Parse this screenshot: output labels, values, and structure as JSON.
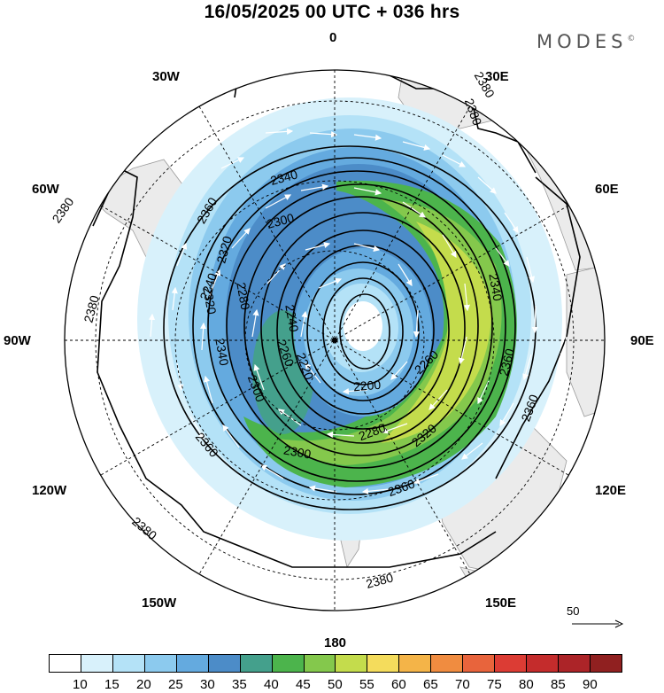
{
  "title": "16/05/2025  00 UTC  + 036 hrs",
  "brand": "MODES",
  "brand_mark": "©",
  "longitude_labels": {
    "top": "0",
    "e30": "30E",
    "e60": "60E",
    "e90": "90E",
    "e120": "120E",
    "e150": "150E",
    "bottom": "180",
    "w150": "150W",
    "w120": "120W",
    "w90": "90W",
    "w60": "60W",
    "w30": "30W"
  },
  "contour_labels": [
    "2380",
    "2380",
    "2380",
    "2380",
    "2380",
    "2380",
    "2360",
    "2360",
    "2360",
    "2360",
    "2360",
    "2340",
    "2340",
    "2340",
    "2320",
    "2320",
    "2320",
    "2300",
    "2300",
    "2300",
    "2280",
    "2280",
    "2260",
    "2260",
    "2240",
    "2240",
    "2220",
    "2200"
  ],
  "vector_reference": "50",
  "colorbar": {
    "colors": [
      "#ffffff",
      "#d8f1fb",
      "#b4e2f7",
      "#8ccaee",
      "#64aadf",
      "#4c8cc8",
      "#44a08c",
      "#4cb44c",
      "#84c84c",
      "#c4dc4c",
      "#f4dc5c",
      "#f4b448",
      "#f08c40",
      "#e8643c",
      "#dc3c34",
      "#c42c2c",
      "#ac2428",
      "#902020"
    ],
    "ticks": [
      "10",
      "15",
      "20",
      "25",
      "30",
      "35",
      "40",
      "45",
      "50",
      "55",
      "60",
      "65",
      "70",
      "75",
      "80",
      "85",
      "90"
    ]
  }
}
